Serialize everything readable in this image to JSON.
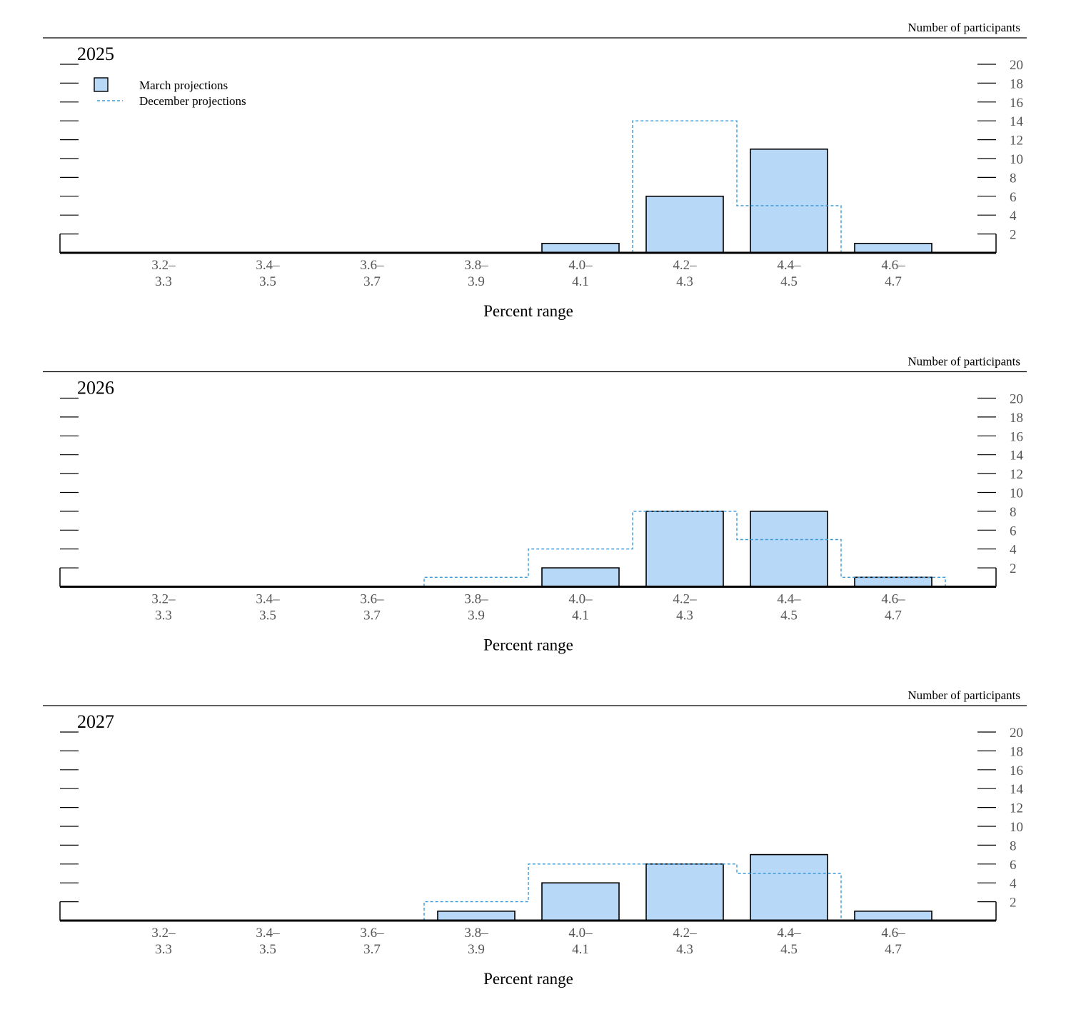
{
  "legend": {
    "march_label": "March projections",
    "december_label": "December projections"
  },
  "colors": {
    "bar_fill": "#b8d8f8",
    "bar_stroke": "#000000",
    "december_line": "#3a9ad9"
  },
  "chart_data": [
    {
      "type": "bar",
      "title": "2025",
      "ylabel": "Number of participants",
      "xlabel": "Percent range",
      "ylim": [
        0,
        20
      ],
      "yticks": [
        2,
        4,
        6,
        8,
        10,
        12,
        14,
        16,
        18,
        20
      ],
      "grid": false,
      "legend_position": "top-left",
      "categories": [
        [
          "3.2–",
          "3.3"
        ],
        [
          "3.4–",
          "3.5"
        ],
        [
          "3.6–",
          "3.7"
        ],
        [
          "3.8–",
          "3.9"
        ],
        [
          "4.0–",
          "4.1"
        ],
        [
          "4.2–",
          "4.3"
        ],
        [
          "4.4–",
          "4.5"
        ],
        [
          "4.6–",
          "4.7"
        ]
      ],
      "series": [
        {
          "name": "March projections",
          "values": [
            0,
            0,
            0,
            0,
            1,
            6,
            11,
            1
          ]
        },
        {
          "name": "December projections",
          "values": [
            0,
            0,
            0,
            0,
            0,
            14,
            5,
            0
          ]
        }
      ]
    },
    {
      "type": "bar",
      "title": "2026",
      "ylabel": "Number of participants",
      "xlabel": "Percent range",
      "ylim": [
        0,
        20
      ],
      "yticks": [
        2,
        4,
        6,
        8,
        10,
        12,
        14,
        16,
        18,
        20
      ],
      "grid": false,
      "categories": [
        [
          "3.2–",
          "3.3"
        ],
        [
          "3.4–",
          "3.5"
        ],
        [
          "3.6–",
          "3.7"
        ],
        [
          "3.8–",
          "3.9"
        ],
        [
          "4.0–",
          "4.1"
        ],
        [
          "4.2–",
          "4.3"
        ],
        [
          "4.4–",
          "4.5"
        ],
        [
          "4.6–",
          "4.7"
        ]
      ],
      "series": [
        {
          "name": "March projections",
          "values": [
            0,
            0,
            0,
            0,
            2,
            8,
            8,
            1
          ]
        },
        {
          "name": "December projections",
          "values": [
            0,
            0,
            0,
            1,
            4,
            8,
            5,
            1
          ]
        }
      ]
    },
    {
      "type": "bar",
      "title": "2027",
      "ylabel": "Number of participants",
      "xlabel": "Percent range",
      "ylim": [
        0,
        20
      ],
      "yticks": [
        2,
        4,
        6,
        8,
        10,
        12,
        14,
        16,
        18,
        20
      ],
      "grid": false,
      "categories": [
        [
          "3.2–",
          "3.3"
        ],
        [
          "3.4–",
          "3.5"
        ],
        [
          "3.6–",
          "3.7"
        ],
        [
          "3.8–",
          "3.9"
        ],
        [
          "4.0–",
          "4.1"
        ],
        [
          "4.2–",
          "4.3"
        ],
        [
          "4.4–",
          "4.5"
        ],
        [
          "4.6–",
          "4.7"
        ]
      ],
      "series": [
        {
          "name": "March projections",
          "values": [
            0,
            0,
            0,
            1,
            4,
            6,
            7,
            1
          ]
        },
        {
          "name": "December projections",
          "values": [
            0,
            0,
            0,
            2,
            6,
            6,
            5,
            0
          ]
        }
      ]
    }
  ]
}
